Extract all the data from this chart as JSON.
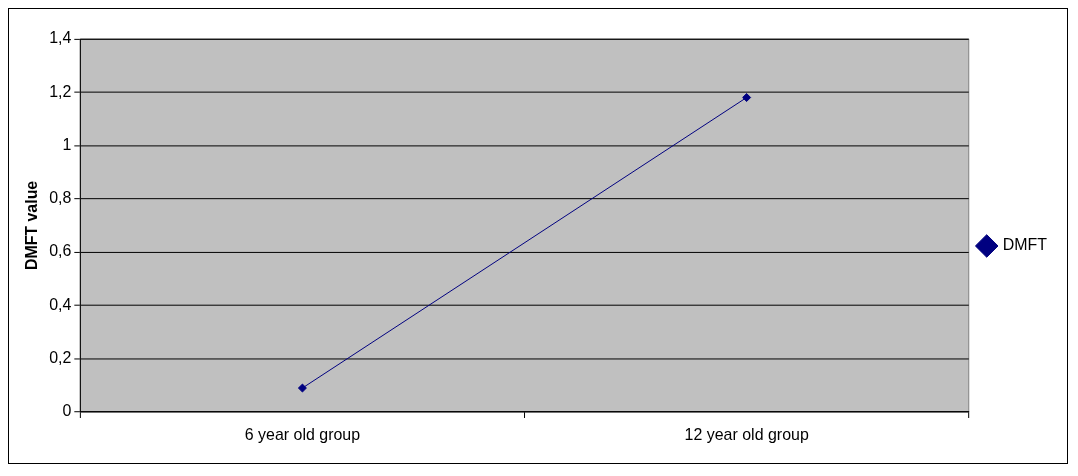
{
  "chart_data": {
    "type": "line",
    "ylabel": "DMFT value",
    "categories": [
      "6 year old group",
      "12 year old group"
    ],
    "series": [
      {
        "name": "DMFT",
        "color": "#000080",
        "values": [
          0.09,
          1.18
        ]
      }
    ],
    "ylim": [
      0,
      1.4
    ],
    "yticks": [
      0,
      {
        "value": 0.2,
        "label": "0,2"
      },
      {
        "value": 0.4,
        "label": "0,4"
      },
      {
        "value": 0.6,
        "label": "0,6"
      },
      {
        "value": 0.8,
        "label": "0,8"
      },
      1,
      {
        "value": 1.2,
        "label": "1,2"
      },
      {
        "value": 1.4,
        "label": "1,4"
      }
    ],
    "grid": "y",
    "legend": "right",
    "marker": "diamond",
    "line_style": "solid"
  }
}
